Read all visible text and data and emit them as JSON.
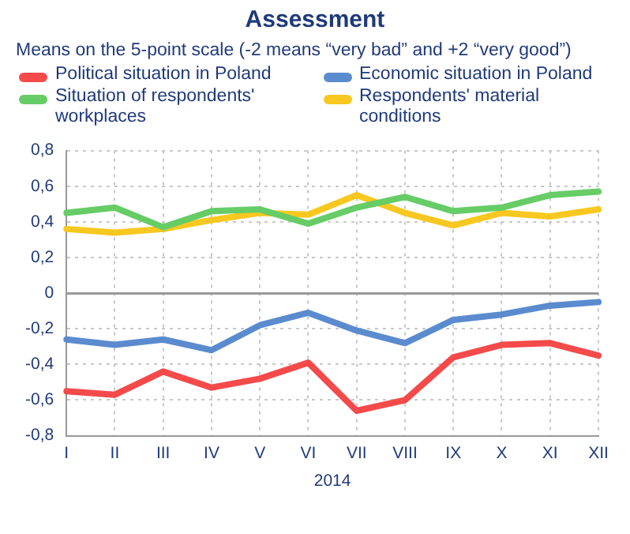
{
  "chart_data": {
    "type": "line",
    "title": "Assessment",
    "subtitle": "Means on the 5-point scale (-2 means “very bad” and +2 “very good”)",
    "xlabel": "2014",
    "categories": [
      "I",
      "II",
      "III",
      "IV",
      "V",
      "VI",
      "VII",
      "VIII",
      "IX",
      "X",
      "XI",
      "XII"
    ],
    "series": [
      {
        "name": "Political situation in Poland",
        "color": "#f44a4a",
        "values": [
          -0.55,
          -0.57,
          -0.44,
          -0.53,
          -0.48,
          -0.39,
          -0.66,
          -0.6,
          -0.36,
          -0.29,
          -0.28,
          -0.35
        ]
      },
      {
        "name": "Economic situation in Poland",
        "color": "#5b8bcf",
        "values": [
          -0.26,
          -0.29,
          -0.26,
          -0.32,
          -0.18,
          -0.11,
          -0.21,
          -0.28,
          -0.15,
          -0.12,
          -0.07,
          -0.05
        ]
      },
      {
        "name": "Situation of respondents' workplaces",
        "color": "#66cc66",
        "values": [
          0.45,
          0.48,
          0.37,
          0.46,
          0.47,
          0.39,
          0.48,
          0.54,
          0.46,
          0.48,
          0.55,
          0.57
        ]
      },
      {
        "name": "Respondents' material conditions",
        "color": "#f8c820",
        "values": [
          0.36,
          0.34,
          0.36,
          0.41,
          0.45,
          0.44,
          0.55,
          0.45,
          0.38,
          0.45,
          0.43,
          0.47
        ]
      }
    ],
    "ylim": [
      -0.8,
      0.8
    ],
    "yticks": [
      {
        "value": -0.8,
        "label": "-0,8"
      },
      {
        "value": -0.6,
        "label": "-0,6"
      },
      {
        "value": -0.4,
        "label": "-0,4"
      },
      {
        "value": -0.2,
        "label": "-0,2"
      },
      0,
      {
        "value": 0.2,
        "label": "0,2"
      },
      {
        "value": 0.4,
        "label": "0,4"
      },
      {
        "value": 0.6,
        "label": "0,6"
      },
      {
        "value": 0.8,
        "label": "0,8"
      }
    ],
    "grid": true,
    "legend": "top",
    "marker": "none",
    "line_style": "solid"
  }
}
